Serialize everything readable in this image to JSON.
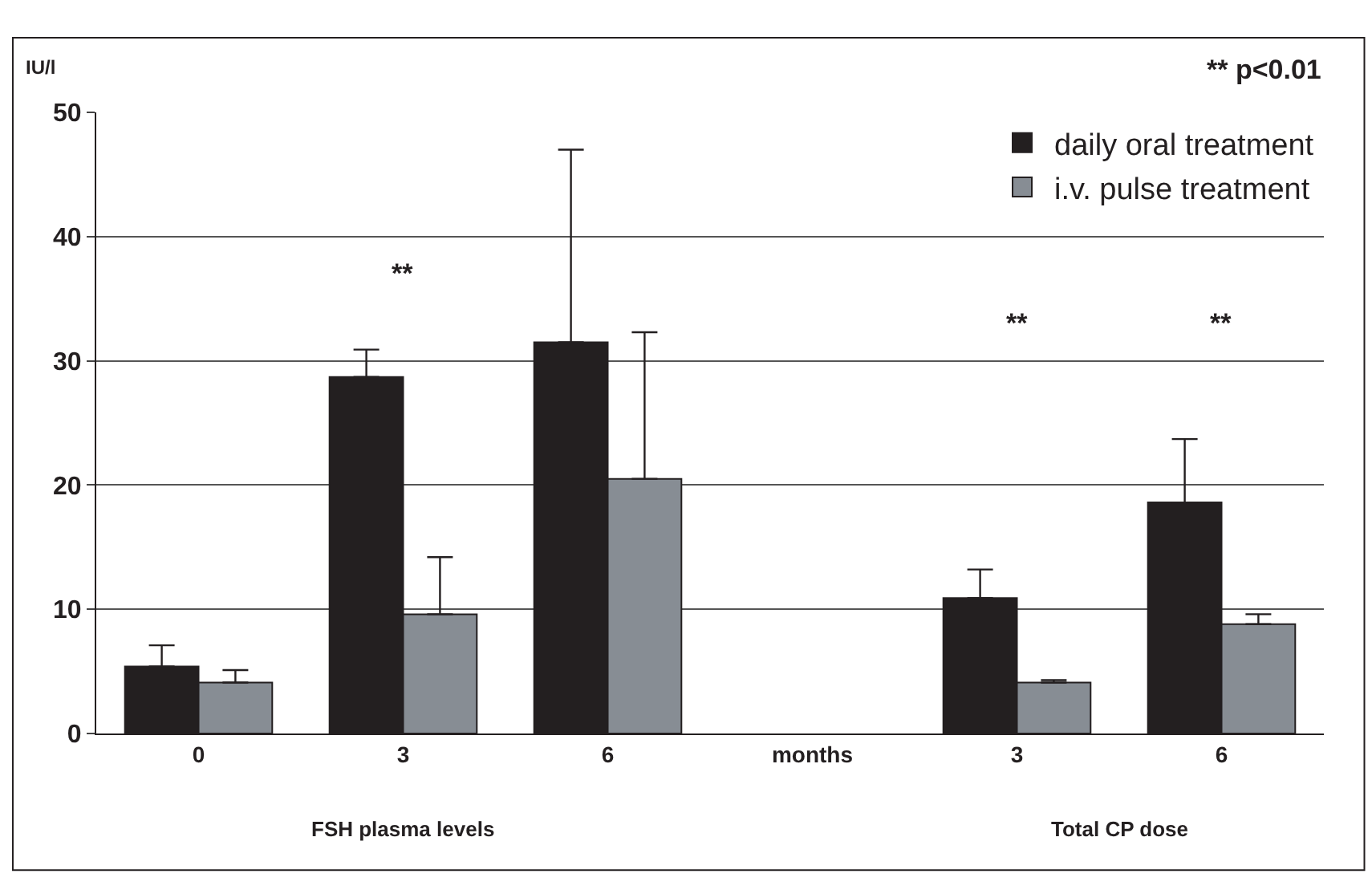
{
  "chart_data": {
    "type": "bar",
    "ylabel": "IU/l",
    "categories": [
      "0",
      "3",
      "6",
      "months",
      "3",
      "6"
    ],
    "series": [
      {
        "name": "daily oral treatment",
        "color": "#231f20",
        "values": [
          5.4,
          28.7,
          31.5,
          null,
          10.9,
          18.6
        ],
        "errors": [
          [
            5.4,
            7.1
          ],
          [
            28.7,
            30.9
          ],
          [
            31.5,
            47.0
          ],
          null,
          [
            10.9,
            13.2
          ],
          [
            18.6,
            23.7
          ]
        ]
      },
      {
        "name": "i.v. pulse treatment",
        "color": "#878d94",
        "values": [
          4.1,
          9.6,
          20.5,
          null,
          4.1,
          8.8
        ],
        "errors": [
          [
            4.1,
            5.1
          ],
          [
            9.6,
            14.2
          ],
          [
            20.5,
            32.3
          ],
          null,
          [
            4.1,
            4.3
          ],
          [
            8.8,
            9.6
          ]
        ]
      }
    ],
    "ylim": [
      0,
      50
    ],
    "yticks": [
      0,
      10,
      20,
      30,
      40,
      50
    ],
    "grid": "y",
    "legend": "top right",
    "annotations": [
      "** p<0.01",
      "**",
      "**",
      "**",
      "FSH plasma levels",
      "Total CP dose"
    ]
  }
}
